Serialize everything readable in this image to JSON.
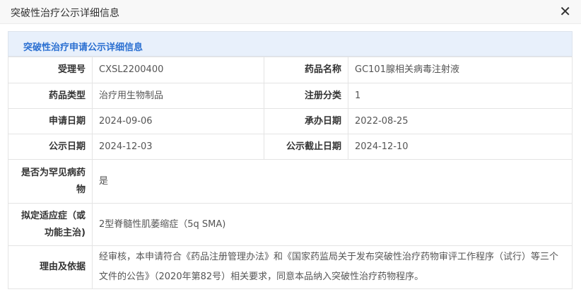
{
  "dialog": {
    "title": "突破性治疗公示详细信息",
    "close_icon": "close-icon"
  },
  "section": {
    "title": "突破性治疗申请公示详细信息"
  },
  "fields": {
    "acceptance_no": {
      "label": "受理号",
      "value": "CXSL2200400"
    },
    "drug_name": {
      "label": "药品名称",
      "value": "GC101腺相关病毒注射液"
    },
    "drug_type": {
      "label": "药品类型",
      "value": "治疗用生物制品"
    },
    "reg_class": {
      "label": "注册分类",
      "value": "1"
    },
    "apply_date": {
      "label": "申请日期",
      "value": "2024-09-06"
    },
    "undertake_date": {
      "label": "承办日期",
      "value": "2022-08-25"
    },
    "publish_date": {
      "label": "公示日期",
      "value": "2024-12-03"
    },
    "publish_end": {
      "label": "公示截止日期",
      "value": "2024-12-10"
    },
    "rare_disease": {
      "label": "是否为罕见病药物",
      "value": "是"
    },
    "indication": {
      "label": "拟定适应症（或功能主治)",
      "value": "2型脊髓性肌萎缩症（5q SMA)"
    },
    "reason": {
      "label": "理由及依据",
      "value": "经审核，本申请符合《药品注册管理办法》和《国家药监局关于发布突破性治疗药物审评工作程序（试行）等三个文件的公告》（2020年第82号）相关要求，同意本品纳入突破性治疗药物程序。"
    }
  }
}
